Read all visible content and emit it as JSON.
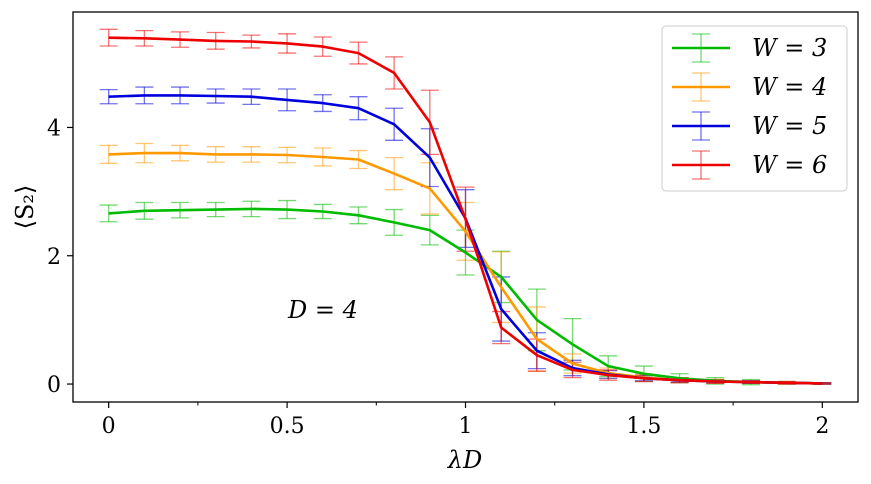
{
  "chart_data": {
    "type": "line",
    "xlabel": "λD",
    "ylabel": "⟨S₂⟩",
    "xlim": [
      -0.1,
      2.1
    ],
    "ylim": [
      -0.28,
      5.8
    ],
    "xticks": [
      0,
      0.5,
      1,
      1.5,
      2
    ],
    "xtick_labels": [
      "0",
      "0.5",
      "1",
      "1.5",
      "2"
    ],
    "xminor": [
      0.25,
      0.75,
      1.25,
      1.75
    ],
    "yticks": [
      0,
      2,
      4
    ],
    "ytick_labels": [
      "0",
      "2",
      "4"
    ],
    "annotation": "D = 4",
    "annotation_pos": {
      "x": 0.53,
      "y": 1.15
    },
    "x": [
      0,
      0.1,
      0.2,
      0.3,
      0.4,
      0.5,
      0.6,
      0.7,
      0.8,
      0.9,
      1.0,
      1.1,
      1.2,
      1.3,
      1.4,
      1.5,
      1.6,
      1.7,
      1.8,
      1.9,
      2.0
    ],
    "legend_position": "upper right",
    "series": [
      {
        "name": "W = 3",
        "color": "#00bb00",
        "values": [
          2.66,
          2.7,
          2.71,
          2.72,
          2.73,
          2.72,
          2.69,
          2.63,
          2.52,
          2.4,
          2.05,
          1.67,
          1.0,
          0.62,
          0.28,
          0.16,
          0.09,
          0.05,
          0.03,
          0.02,
          0.01
        ],
        "errors": [
          0.13,
          0.13,
          0.12,
          0.11,
          0.12,
          0.14,
          0.11,
          0.13,
          0.2,
          0.23,
          0.35,
          0.4,
          0.48,
          0.4,
          0.16,
          0.12,
          0.07,
          0.05,
          0.04,
          0.02,
          0.01
        ]
      },
      {
        "name": "W = 4",
        "color": "#ff9900",
        "values": [
          3.58,
          3.6,
          3.6,
          3.58,
          3.58,
          3.57,
          3.54,
          3.5,
          3.28,
          3.05,
          2.38,
          1.51,
          0.7,
          0.32,
          0.17,
          0.1,
          0.06,
          0.04,
          0.03,
          0.02,
          0.01
        ],
        "errors": [
          0.14,
          0.15,
          0.12,
          0.12,
          0.12,
          0.12,
          0.14,
          0.14,
          0.25,
          0.4,
          0.45,
          0.55,
          0.5,
          0.15,
          0.08,
          0.06,
          0.04,
          0.03,
          0.02,
          0.02,
          0.01
        ]
      },
      {
        "name": "W = 5",
        "color": "#0000dd",
        "values": [
          4.48,
          4.5,
          4.5,
          4.49,
          4.48,
          4.43,
          4.38,
          4.3,
          4.05,
          3.53,
          2.58,
          1.17,
          0.52,
          0.25,
          0.15,
          0.09,
          0.06,
          0.04,
          0.03,
          0.02,
          0.01
        ],
        "errors": [
          0.11,
          0.13,
          0.13,
          0.11,
          0.12,
          0.17,
          0.13,
          0.18,
          0.25,
          0.45,
          0.45,
          0.5,
          0.28,
          0.12,
          0.06,
          0.04,
          0.03,
          0.02,
          0.02,
          0.01,
          0.01
        ]
      },
      {
        "name": "W = 6",
        "color": "#ee0000",
        "values": [
          5.4,
          5.39,
          5.37,
          5.35,
          5.34,
          5.31,
          5.26,
          5.16,
          4.85,
          4.08,
          2.57,
          0.88,
          0.45,
          0.22,
          0.14,
          0.09,
          0.06,
          0.04,
          0.03,
          0.02,
          0.01
        ],
        "errors": [
          0.13,
          0.12,
          0.12,
          0.13,
          0.1,
          0.15,
          0.15,
          0.17,
          0.25,
          0.5,
          0.5,
          0.25,
          0.25,
          0.12,
          0.08,
          0.05,
          0.04,
          0.03,
          0.02,
          0.02,
          0.01
        ]
      }
    ]
  }
}
